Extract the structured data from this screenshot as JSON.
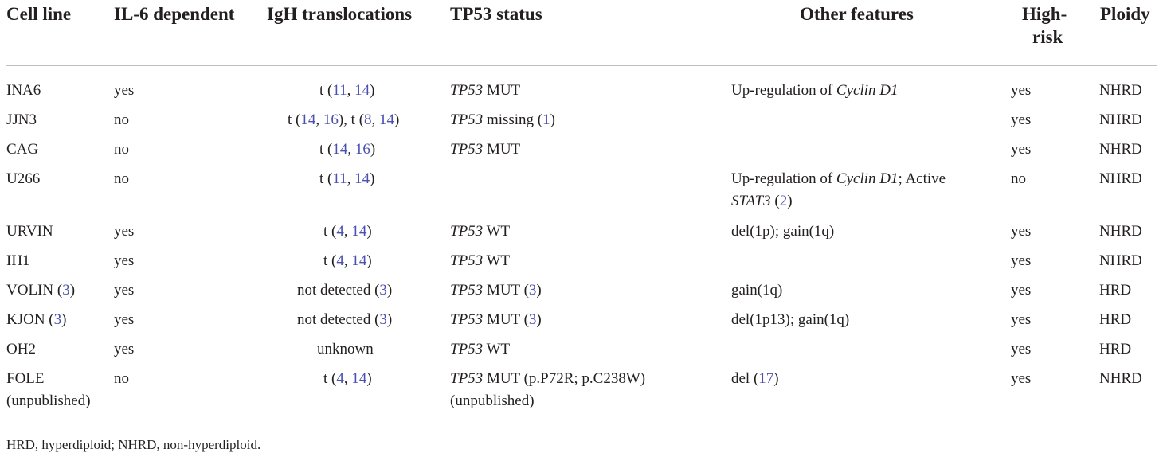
{
  "headers": {
    "cell_line": "Cell line",
    "il6": "IL-6 dependent",
    "igh": "IgH translocations",
    "tp53": "TP53 status",
    "other": "Other features",
    "highrisk_1": "High-",
    "highrisk_2": "risk",
    "ploidy": "Ploidy"
  },
  "rows": [
    {
      "cell_line": "INA6",
      "il6": "yes",
      "igh": [
        "t (",
        "11",
        ", ",
        "14",
        ")"
      ],
      "tp53_gene": "TP53",
      "tp53_rest": " MUT",
      "other": "Up-regulation of ",
      "other_gene": "Cyclin D1",
      "highrisk": "yes",
      "ploidy": "NHRD"
    },
    {
      "cell_line": "JJN3",
      "il6": "no",
      "igh": [
        "t (",
        "14",
        ", ",
        "16",
        "), t (",
        "8",
        ", ",
        "14",
        ")"
      ],
      "tp53_gene": "TP53",
      "tp53_rest": " missing (",
      "tp53_ref": "1",
      "tp53_close": ")",
      "highrisk": "yes",
      "ploidy": "NHRD"
    },
    {
      "cell_line": "CAG",
      "il6": "no",
      "igh": [
        "t (",
        "14",
        ", ",
        "16",
        ")"
      ],
      "tp53_gene": "TP53",
      "tp53_rest": " MUT",
      "highrisk": "yes",
      "ploidy": "NHRD"
    },
    {
      "cell_line": "U266",
      "il6": "no",
      "igh": [
        "t (",
        "11",
        ", ",
        "14",
        ")"
      ],
      "other_l1_a": "Up-regulation of ",
      "other_l1_gene": "Cyclin D1",
      "other_l1_b": "; Active",
      "other_l2_gene": "STAT3",
      "other_l2_a": " (",
      "other_l2_ref": "2",
      "other_l2_b": ")",
      "highrisk": "no",
      "ploidy": "NHRD"
    },
    {
      "cell_line": "URVIN",
      "il6": "yes",
      "igh": [
        "t (",
        "4",
        ", ",
        "14",
        ")"
      ],
      "tp53_gene": "TP53",
      "tp53_rest": " WT",
      "other": "del(1p); gain(1q)",
      "highrisk": "yes",
      "ploidy": "NHRD"
    },
    {
      "cell_line": "IH1",
      "il6": "yes",
      "igh": [
        "t (",
        "4",
        ", ",
        "14",
        ")"
      ],
      "tp53_gene": "TP53",
      "tp53_rest": " WT",
      "highrisk": "yes",
      "ploidy": "NHRD"
    },
    {
      "cell_line": "VOLIN (",
      "cell_ref": "3",
      "cell_close": ")",
      "il6": "yes",
      "igh_text": "not detected (",
      "igh_ref": "3",
      "igh_close": ")",
      "tp53_gene": "TP53",
      "tp53_rest": " MUT (",
      "tp53_ref": "3",
      "tp53_close": ")",
      "other": "gain(1q)",
      "highrisk": "yes",
      "ploidy": "HRD"
    },
    {
      "cell_line": "KJON (",
      "cell_ref": "3",
      "cell_close": ")",
      "il6": "yes",
      "igh_text": "not detected (",
      "igh_ref": "3",
      "igh_close": ")",
      "tp53_gene": "TP53",
      "tp53_rest": " MUT (",
      "tp53_ref": "3",
      "tp53_close": ")",
      "other": "del(1p13); gain(1q)",
      "highrisk": "yes",
      "ploidy": "HRD"
    },
    {
      "cell_line": "OH2",
      "il6": "yes",
      "igh_text": "unknown",
      "tp53_gene": "TP53",
      "tp53_rest": " WT",
      "highrisk": "yes",
      "ploidy": "HRD"
    },
    {
      "cell_line": "FOLE",
      "cell_line_2": "(unpublished)",
      "il6": "no",
      "igh": [
        "t (",
        "4",
        ", ",
        "14",
        ")"
      ],
      "tp53_gene": "TP53",
      "tp53_rest": " MUT (p.P72R; p.C238W)",
      "tp53_l2": "(unpublished)",
      "other": "del (",
      "other_ref": "17",
      "other_close": ")",
      "highrisk": "yes",
      "ploidy": "NHRD"
    }
  ],
  "footnote": "HRD, hyperdiploid; NHRD, non-hyperdiploid.",
  "colors": {
    "text": "#231f20",
    "reference_link": "#4a4fb0",
    "rule": "#bdbdbd"
  }
}
